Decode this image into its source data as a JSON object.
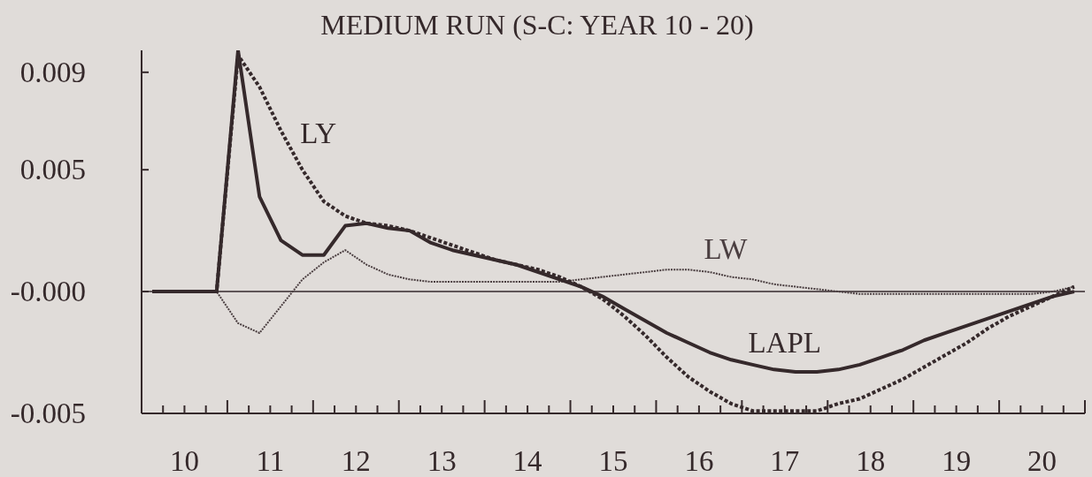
{
  "chart_data": {
    "type": "line",
    "title": "MEDIUM RUN (S-C: YEAR 10 - 20)",
    "x": [
      10.125,
      10.375,
      10.625,
      10.875,
      11.125,
      11.375,
      11.625,
      11.875,
      12.125,
      12.375,
      12.625,
      12.875,
      13.125,
      13.375,
      13.625,
      13.875,
      14.125,
      14.375,
      14.625,
      14.875,
      15.125,
      15.375,
      15.625,
      15.875,
      16.125,
      16.375,
      16.625,
      16.875,
      17.125,
      17.375,
      17.625,
      17.875,
      18.125,
      18.375,
      18.625,
      18.875,
      19.125,
      19.375,
      19.625,
      19.875,
      20.125,
      20.375,
      20.625,
      20.875
    ],
    "series": [
      {
        "name": "LAPL",
        "color": "#35292b",
        "line_style": "solid",
        "values": [
          0,
          0,
          0,
          0,
          0.0099,
          0.0039,
          0.0021,
          0.0015,
          0.0015,
          0.0027,
          0.0028,
          0.0026,
          0.0025,
          0.002,
          0.0017,
          0.0015,
          0.0013,
          0.0011,
          0.0008,
          0.0005,
          0.0002,
          -0.0002,
          -0.0007,
          -0.0012,
          -0.0017,
          -0.0021,
          -0.0025,
          -0.0028,
          -0.003,
          -0.0032,
          -0.0033,
          -0.0033,
          -0.0032,
          -0.003,
          -0.0027,
          -0.0024,
          -0.002,
          -0.0017,
          -0.0014,
          -0.0011,
          -0.0008,
          -0.0005,
          -0.0002,
          0
        ]
      },
      {
        "name": "LY",
        "color": "#35292b",
        "line_style": "dotted",
        "values": [
          0,
          0,
          0,
          0,
          0.0097,
          0.0084,
          0.0066,
          0.005,
          0.0037,
          0.0031,
          0.0028,
          0.0027,
          0.0025,
          0.0022,
          0.0019,
          0.0016,
          0.0013,
          0.0011,
          0.0009,
          0.0006,
          0.0002,
          -0.0003,
          -0.001,
          -0.0018,
          -0.0027,
          -0.0035,
          -0.0041,
          -0.0046,
          -0.0049,
          -0.0049,
          -0.0049,
          -0.0049,
          -0.0046,
          -0.0044,
          -0.004,
          -0.0036,
          -0.0031,
          -0.0026,
          -0.0021,
          -0.0015,
          -0.001,
          -0.0006,
          -0.0002,
          0.0002
        ]
      },
      {
        "name": "LW",
        "color": "#4a3e40",
        "line_style": "dotted",
        "values": [
          0,
          0,
          0,
          0,
          -0.0013,
          -0.0017,
          -0.0006,
          0.0005,
          0.0012,
          0.0017,
          0.0011,
          0.0007,
          0.0005,
          0.0004,
          0.0004,
          0.0004,
          0.0004,
          0.0004,
          0.0004,
          0.0004,
          0.0005,
          0.0006,
          0.0007,
          0.0008,
          0.0009,
          0.0009,
          0.0008,
          0.0006,
          0.0005,
          0.0003,
          0.0002,
          0.0001,
          0,
          -0.0001,
          -0.0001,
          -0.0001,
          -0.0001,
          -0.0001,
          -0.0001,
          -0.0001,
          -0.0001,
          -0.0001,
          0,
          0.0002
        ]
      }
    ],
    "xlim": [
      10,
      21
    ],
    "xticks": [
      {
        "value": 10,
        "label": null
      },
      {
        "value": 10.25,
        "label": null
      },
      {
        "value": 10.5,
        "label": "10"
      },
      {
        "value": 10.75,
        "label": null
      },
      {
        "value": 11,
        "label": null
      },
      {
        "value": 11.25,
        "label": null
      },
      {
        "value": 11.5,
        "label": "11"
      },
      {
        "value": 11.75,
        "label": null
      },
      {
        "value": 12,
        "label": null
      },
      {
        "value": 12.25,
        "label": null
      },
      {
        "value": 12.5,
        "label": "12"
      },
      {
        "value": 12.75,
        "label": null
      },
      {
        "value": 13,
        "label": null
      },
      {
        "value": 13.25,
        "label": null
      },
      {
        "value": 13.5,
        "label": "13"
      },
      {
        "value": 13.75,
        "label": null
      },
      {
        "value": 14,
        "label": null
      },
      {
        "value": 14.25,
        "label": null
      },
      {
        "value": 14.5,
        "label": "14"
      },
      {
        "value": 14.75,
        "label": null
      },
      {
        "value": 15,
        "label": null
      },
      {
        "value": 15.25,
        "label": null
      },
      {
        "value": 15.5,
        "label": "15"
      },
      {
        "value": 15.75,
        "label": null
      },
      {
        "value": 16,
        "label": null
      },
      {
        "value": 16.25,
        "label": null
      },
      {
        "value": 16.5,
        "label": "16"
      },
      {
        "value": 16.75,
        "label": null
      },
      {
        "value": 17,
        "label": null
      },
      {
        "value": 17.25,
        "label": null
      },
      {
        "value": 17.5,
        "label": "17"
      },
      {
        "value": 17.75,
        "label": null
      },
      {
        "value": 18,
        "label": null
      },
      {
        "value": 18.25,
        "label": null
      },
      {
        "value": 18.5,
        "label": "18"
      },
      {
        "value": 18.75,
        "label": null
      },
      {
        "value": 19,
        "label": null
      },
      {
        "value": 19.25,
        "label": null
      },
      {
        "value": 19.5,
        "label": "19"
      },
      {
        "value": 19.75,
        "label": null
      },
      {
        "value": 20,
        "label": null
      },
      {
        "value": 20.25,
        "label": null
      },
      {
        "value": 20.5,
        "label": "20"
      },
      {
        "value": 20.75,
        "label": null
      },
      {
        "value": 21,
        "label": null
      }
    ],
    "ylim": [
      -0.005,
      0.0099
    ],
    "yticks": [
      -0.005,
      {
        "value": 0,
        "label": "-0.000"
      },
      0.005,
      0.009
    ],
    "ref_lines": [
      {
        "axis": "y",
        "value": 0,
        "color": "#35292b"
      }
    ]
  }
}
